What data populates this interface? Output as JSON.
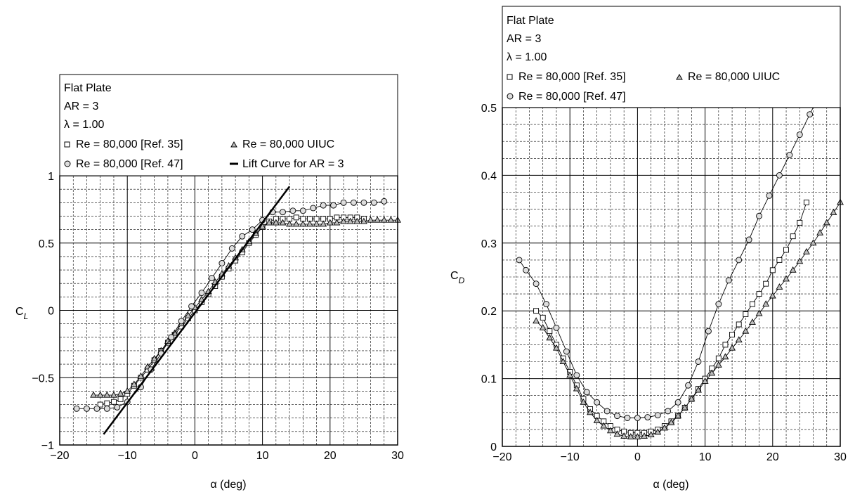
{
  "chart_data": [
    {
      "type": "line",
      "panel": "left",
      "title": "",
      "xlabel": "α (deg)",
      "ylabel": "C_L",
      "ylabel_main": "C",
      "ylabel_sub": "L",
      "xlim": [
        -20,
        30
      ],
      "ylim": [
        -1,
        1
      ],
      "xticks": [
        "−20",
        "−10",
        "0",
        "10",
        "20",
        "30"
      ],
      "yticks": [
        "−1",
        "−0.5",
        "0",
        "0.5",
        "1"
      ],
      "grid": true,
      "legend_placement": "top",
      "legend": {
        "lines": [
          "Flat Plate",
          "AR = 3",
          "λ = 1.00"
        ],
        "entries": [
          {
            "marker": "square",
            "label": "Re = 80,000 [Ref. 35]"
          },
          {
            "marker": "triangle",
            "label": "Re = 80,000 UIUC"
          },
          {
            "marker": "circle",
            "label": "Re = 80,000 [Ref. 47]"
          },
          {
            "marker": "line",
            "label": "Lift Curve for AR = 3"
          }
        ]
      },
      "series": [
        {
          "name": "Re = 80,000 [Ref. 35]",
          "marker": "square",
          "x": [
            -14,
            -13,
            -12,
            -11,
            -10,
            -9,
            -8,
            -7,
            -6,
            -5,
            -4,
            -3,
            -2,
            -1,
            0,
            1,
            2,
            3,
            4,
            5,
            6,
            7,
            8,
            9,
            10,
            11,
            12,
            13,
            14,
            15,
            16,
            17,
            18,
            19,
            20,
            21,
            22,
            23,
            24,
            25
          ],
          "y": [
            -0.7,
            -0.69,
            -0.68,
            -0.66,
            -0.62,
            -0.56,
            -0.5,
            -0.44,
            -0.37,
            -0.3,
            -0.24,
            -0.18,
            -0.12,
            -0.06,
            0.0,
            0.06,
            0.12,
            0.18,
            0.25,
            0.31,
            0.37,
            0.43,
            0.5,
            0.56,
            0.62,
            0.66,
            0.68,
            0.68,
            0.68,
            0.69,
            0.68,
            0.68,
            0.68,
            0.68,
            0.68,
            0.69,
            0.69,
            0.69,
            0.69,
            0.68
          ]
        },
        {
          "name": "Re = 80,000 UIUC",
          "marker": "triangle",
          "x": [
            -15,
            -14,
            -13,
            -12,
            -11,
            -10,
            -9,
            -8,
            -7,
            -6,
            -5,
            -4,
            -3,
            -2,
            -1,
            0,
            1,
            2,
            3,
            4,
            5,
            6,
            7,
            8,
            9,
            10,
            11,
            12,
            13,
            14,
            15,
            16,
            17,
            18,
            19,
            20,
            21,
            22,
            23,
            24,
            25,
            26,
            27,
            28,
            29,
            30
          ],
          "y": [
            -0.63,
            -0.63,
            -0.63,
            -0.63,
            -0.62,
            -0.6,
            -0.55,
            -0.49,
            -0.42,
            -0.36,
            -0.3,
            -0.23,
            -0.17,
            -0.1,
            -0.04,
            0.02,
            0.08,
            0.14,
            0.21,
            0.27,
            0.33,
            0.39,
            0.45,
            0.51,
            0.57,
            0.62,
            0.65,
            0.65,
            0.65,
            0.64,
            0.64,
            0.64,
            0.64,
            0.64,
            0.64,
            0.65,
            0.65,
            0.66,
            0.66,
            0.66,
            0.66,
            0.67,
            0.67,
            0.67,
            0.67,
            0.67
          ]
        },
        {
          "name": "Re = 80,000 [Ref. 47]",
          "marker": "circle",
          "x": [
            -17.5,
            -16,
            -14.5,
            -13,
            -11.5,
            -10,
            -8,
            -6.5,
            -5,
            -3.5,
            -2,
            -0.5,
            1,
            2.5,
            4,
            5.5,
            7,
            8.5,
            10,
            11.5,
            13,
            14.5,
            16,
            17.5,
            19,
            20.5,
            22,
            23.5,
            25,
            26.5,
            28
          ],
          "y": [
            -0.73,
            -0.73,
            -0.73,
            -0.73,
            -0.72,
            -0.68,
            -0.57,
            -0.44,
            -0.32,
            -0.2,
            -0.08,
            0.03,
            0.13,
            0.24,
            0.35,
            0.46,
            0.55,
            0.6,
            0.67,
            0.73,
            0.73,
            0.74,
            0.74,
            0.76,
            0.78,
            0.78,
            0.8,
            0.8,
            0.8,
            0.8,
            0.81
          ]
        },
        {
          "name": "Lift Curve for AR = 3",
          "marker": "line",
          "x": [
            -13.5,
            14
          ],
          "y": [
            -0.92,
            0.92
          ]
        }
      ]
    },
    {
      "type": "line",
      "panel": "right",
      "title": "",
      "xlabel": "α (deg)",
      "ylabel": "C_D",
      "ylabel_main": "C",
      "ylabel_sub": "D",
      "xlim": [
        -20,
        30
      ],
      "ylim": [
        0,
        0.5
      ],
      "xticks": [
        "−20",
        "−10",
        "0",
        "10",
        "20",
        "30"
      ],
      "yticks": [
        "0",
        "0.1",
        "0.2",
        "0.3",
        "0.4",
        "0.5"
      ],
      "grid": true,
      "legend_placement": "top",
      "legend": {
        "lines": [
          "Flat Plate",
          "AR = 3",
          "λ = 1.00"
        ],
        "entries": [
          {
            "marker": "square",
            "label": "Re = 80,000 [Ref. 35]"
          },
          {
            "marker": "triangle",
            "label": "Re = 80,000 UIUC"
          },
          {
            "marker": "circle",
            "label": "Re = 80,000 [Ref. 47]"
          }
        ]
      },
      "series": [
        {
          "name": "Re = 80,000 [Ref. 35]",
          "marker": "square",
          "x": [
            -15,
            -14,
            -13,
            -12,
            -11,
            -10,
            -9,
            -8,
            -7,
            -6,
            -5,
            -4,
            -3,
            -2,
            -1,
            0,
            1,
            2,
            3,
            4,
            5,
            6,
            7,
            8,
            9,
            10,
            11,
            12,
            13,
            14,
            15,
            16,
            17,
            18,
            19,
            20,
            21,
            22,
            23,
            24,
            25
          ],
          "y": [
            0.2,
            0.19,
            0.17,
            0.15,
            0.13,
            0.11,
            0.09,
            0.07,
            0.055,
            0.045,
            0.037,
            0.03,
            0.025,
            0.022,
            0.02,
            0.02,
            0.02,
            0.022,
            0.025,
            0.03,
            0.037,
            0.045,
            0.057,
            0.07,
            0.085,
            0.1,
            0.115,
            0.13,
            0.15,
            0.165,
            0.18,
            0.195,
            0.21,
            0.225,
            0.24,
            0.26,
            0.275,
            0.29,
            0.31,
            0.33,
            0.36
          ]
        },
        {
          "name": "Re = 80,000 UIUC",
          "marker": "triangle",
          "x": [
            -15,
            -14,
            -13,
            -12,
            -11,
            -10,
            -9,
            -8,
            -7,
            -6,
            -5,
            -4,
            -3,
            -2,
            -1,
            0,
            1,
            2,
            3,
            4,
            5,
            6,
            7,
            8,
            9,
            10,
            11,
            12,
            13,
            14,
            15,
            16,
            17,
            18,
            19,
            20,
            21,
            22,
            23,
            24,
            25,
            26,
            27,
            28,
            29,
            30
          ],
          "y": [
            0.185,
            0.175,
            0.16,
            0.145,
            0.125,
            0.105,
            0.085,
            0.065,
            0.05,
            0.038,
            0.03,
            0.023,
            0.018,
            0.015,
            0.014,
            0.014,
            0.015,
            0.017,
            0.021,
            0.027,
            0.035,
            0.045,
            0.057,
            0.07,
            0.083,
            0.096,
            0.108,
            0.12,
            0.132,
            0.145,
            0.157,
            0.17,
            0.183,
            0.196,
            0.21,
            0.222,
            0.235,
            0.247,
            0.26,
            0.273,
            0.287,
            0.3,
            0.315,
            0.33,
            0.345,
            0.36
          ]
        },
        {
          "name": "Re = 80,000 [Ref. 47]",
          "marker": "circle",
          "x": [
            -17.5,
            -16.5,
            -15,
            -13.5,
            -12,
            -10.5,
            -9,
            -7.5,
            -6,
            -4.5,
            -3,
            -1.5,
            0,
            1.5,
            3,
            4.5,
            6,
            7.5,
            9,
            10.5,
            12,
            13.5,
            15,
            16.5,
            18,
            19.5,
            21,
            22.5,
            24,
            25.5,
            27
          ],
          "y": [
            0.275,
            0.26,
            0.24,
            0.21,
            0.175,
            0.14,
            0.105,
            0.08,
            0.065,
            0.052,
            0.045,
            0.042,
            0.042,
            0.043,
            0.046,
            0.052,
            0.065,
            0.09,
            0.125,
            0.17,
            0.21,
            0.245,
            0.275,
            0.305,
            0.34,
            0.37,
            0.4,
            0.43,
            0.46,
            0.49,
            0.52
          ]
        }
      ]
    }
  ]
}
